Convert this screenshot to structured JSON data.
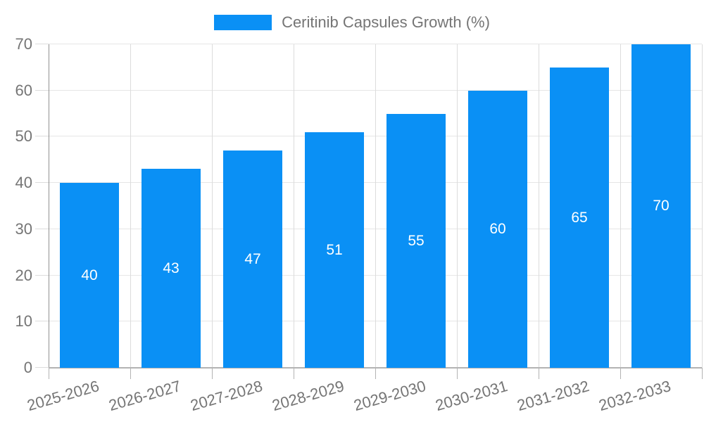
{
  "chart_data": {
    "type": "bar",
    "title": "",
    "legend": "Ceritinib Capsules Growth (%)",
    "legend_position": "top-center",
    "categories": [
      "2025-2026",
      "2026-2027",
      "2027-2028",
      "2028-2029",
      "2029-2030",
      "2030-2031",
      "2031-2032",
      "2032-2033"
    ],
    "values": [
      40,
      43,
      47,
      51,
      55,
      60,
      65,
      70
    ],
    "yticks": [
      0,
      10,
      20,
      30,
      40,
      50,
      60,
      70
    ],
    "ylim": [
      0,
      70
    ],
    "xlabel": "",
    "ylabel": "",
    "grid": true,
    "x_label_rotation_deg": -16,
    "bar_color": "#0a90f5",
    "bar_label_color": "#ffffff",
    "axis_text_color": "#757575",
    "hgrid_color": "#e6e6e6",
    "vgrid_color": "#dcdcdc",
    "x_axis_line_color": "#b3b3b3",
    "y_axis_line_color": "#919191",
    "background_color": "#ffffff"
  }
}
